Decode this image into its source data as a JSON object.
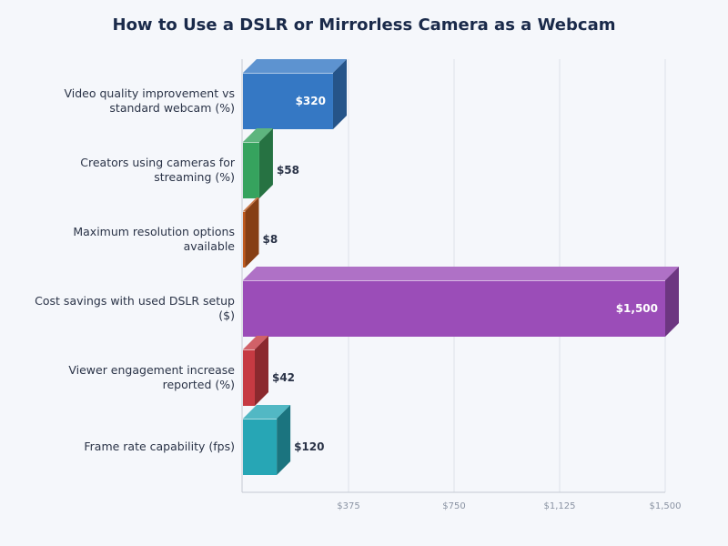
{
  "chart_data": {
    "type": "bar",
    "orientation": "horizontal",
    "title": "How to Use a DSLR or Mirrorless Camera as a Webcam",
    "categories": [
      "Video quality improvement vs standard webcam (%)",
      "Creators using cameras for streaming (%)",
      "Maximum resolution options available",
      "Cost savings with used DSLR setup ($)",
      "Viewer engagement increase reported (%)",
      "Frame rate capability (fps)"
    ],
    "values": [
      320,
      58,
      8,
      1500,
      42,
      120
    ],
    "data_labels": [
      "$320",
      "$58",
      "$8",
      "$1,500",
      "$42",
      "$120"
    ],
    "colors": [
      "#3578c4",
      "#36a35e",
      "#c05a1e",
      "#9b4db8",
      "#c63a42",
      "#27a6b5"
    ],
    "xlim": [
      0,
      1500
    ],
    "x_ticks": [
      375,
      750,
      1125,
      1500
    ],
    "x_tick_labels": [
      "$375",
      "$750",
      "$1,125",
      "$1,500"
    ],
    "grid": true,
    "style": "3d"
  }
}
